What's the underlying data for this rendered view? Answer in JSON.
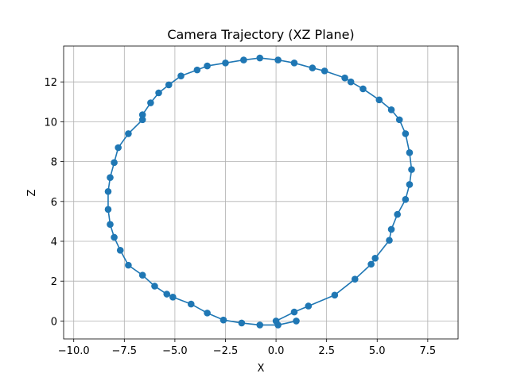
{
  "chart_data": {
    "type": "line",
    "title": "Camera Trajectory (XZ Plane)",
    "xlabel": "X",
    "ylabel": "Z",
    "xlim": [
      -10.5,
      9.0
    ],
    "ylim": [
      -0.9,
      13.8
    ],
    "xticks": [
      -10.0,
      -7.5,
      -5.0,
      -2.5,
      0.0,
      2.5,
      5.0,
      7.5
    ],
    "xtick_labels": [
      "−10.0",
      "−7.5",
      "−5.0",
      "−2.5",
      "0.0",
      "2.5",
      "5.0",
      "7.5"
    ],
    "yticks": [
      0,
      2,
      4,
      6,
      8,
      10,
      12
    ],
    "ytick_labels": [
      "0",
      "2",
      "4",
      "6",
      "8",
      "10",
      "12"
    ],
    "grid": true,
    "marker": "circle",
    "color": "#1f77b4",
    "series": [
      {
        "x": [
          0.0,
          0.9,
          1.6,
          2.9,
          3.9,
          4.7,
          4.9,
          5.6,
          5.7,
          6.0,
          6.4,
          6.6,
          6.7,
          6.6,
          6.4,
          6.1,
          5.7,
          5.1,
          4.3,
          3.7,
          3.4,
          2.4,
          1.8,
          0.9,
          0.1,
          -0.8,
          -1.6,
          -2.5,
          -3.4,
          -3.9,
          -4.7,
          -5.3,
          -5.8,
          -6.2,
          -6.6,
          -6.6,
          -7.3,
          -7.8,
          -8.0,
          -8.2,
          -8.3,
          -8.3,
          -8.2,
          -8.0,
          -7.7,
          -7.3,
          -6.6,
          -6.0,
          -5.4,
          -5.1,
          -4.2,
          -3.4,
          -2.6,
          -1.7,
          -0.8,
          0.1,
          1.0
        ],
        "y": [
          0.0,
          0.45,
          0.75,
          1.3,
          2.1,
          2.85,
          3.15,
          4.05,
          4.6,
          5.35,
          6.1,
          6.85,
          7.6,
          8.45,
          9.4,
          10.1,
          10.6,
          11.1,
          11.65,
          12.0,
          12.2,
          12.55,
          12.7,
          12.95,
          13.1,
          13.2,
          13.1,
          12.95,
          12.8,
          12.6,
          12.3,
          11.85,
          11.45,
          10.95,
          10.35,
          10.1,
          9.4,
          8.7,
          7.95,
          7.2,
          6.5,
          5.6,
          4.85,
          4.2,
          3.55,
          2.8,
          2.3,
          1.75,
          1.35,
          1.2,
          0.85,
          0.4,
          0.05,
          -0.1,
          -0.2,
          -0.2,
          0.0
        ]
      }
    ]
  }
}
